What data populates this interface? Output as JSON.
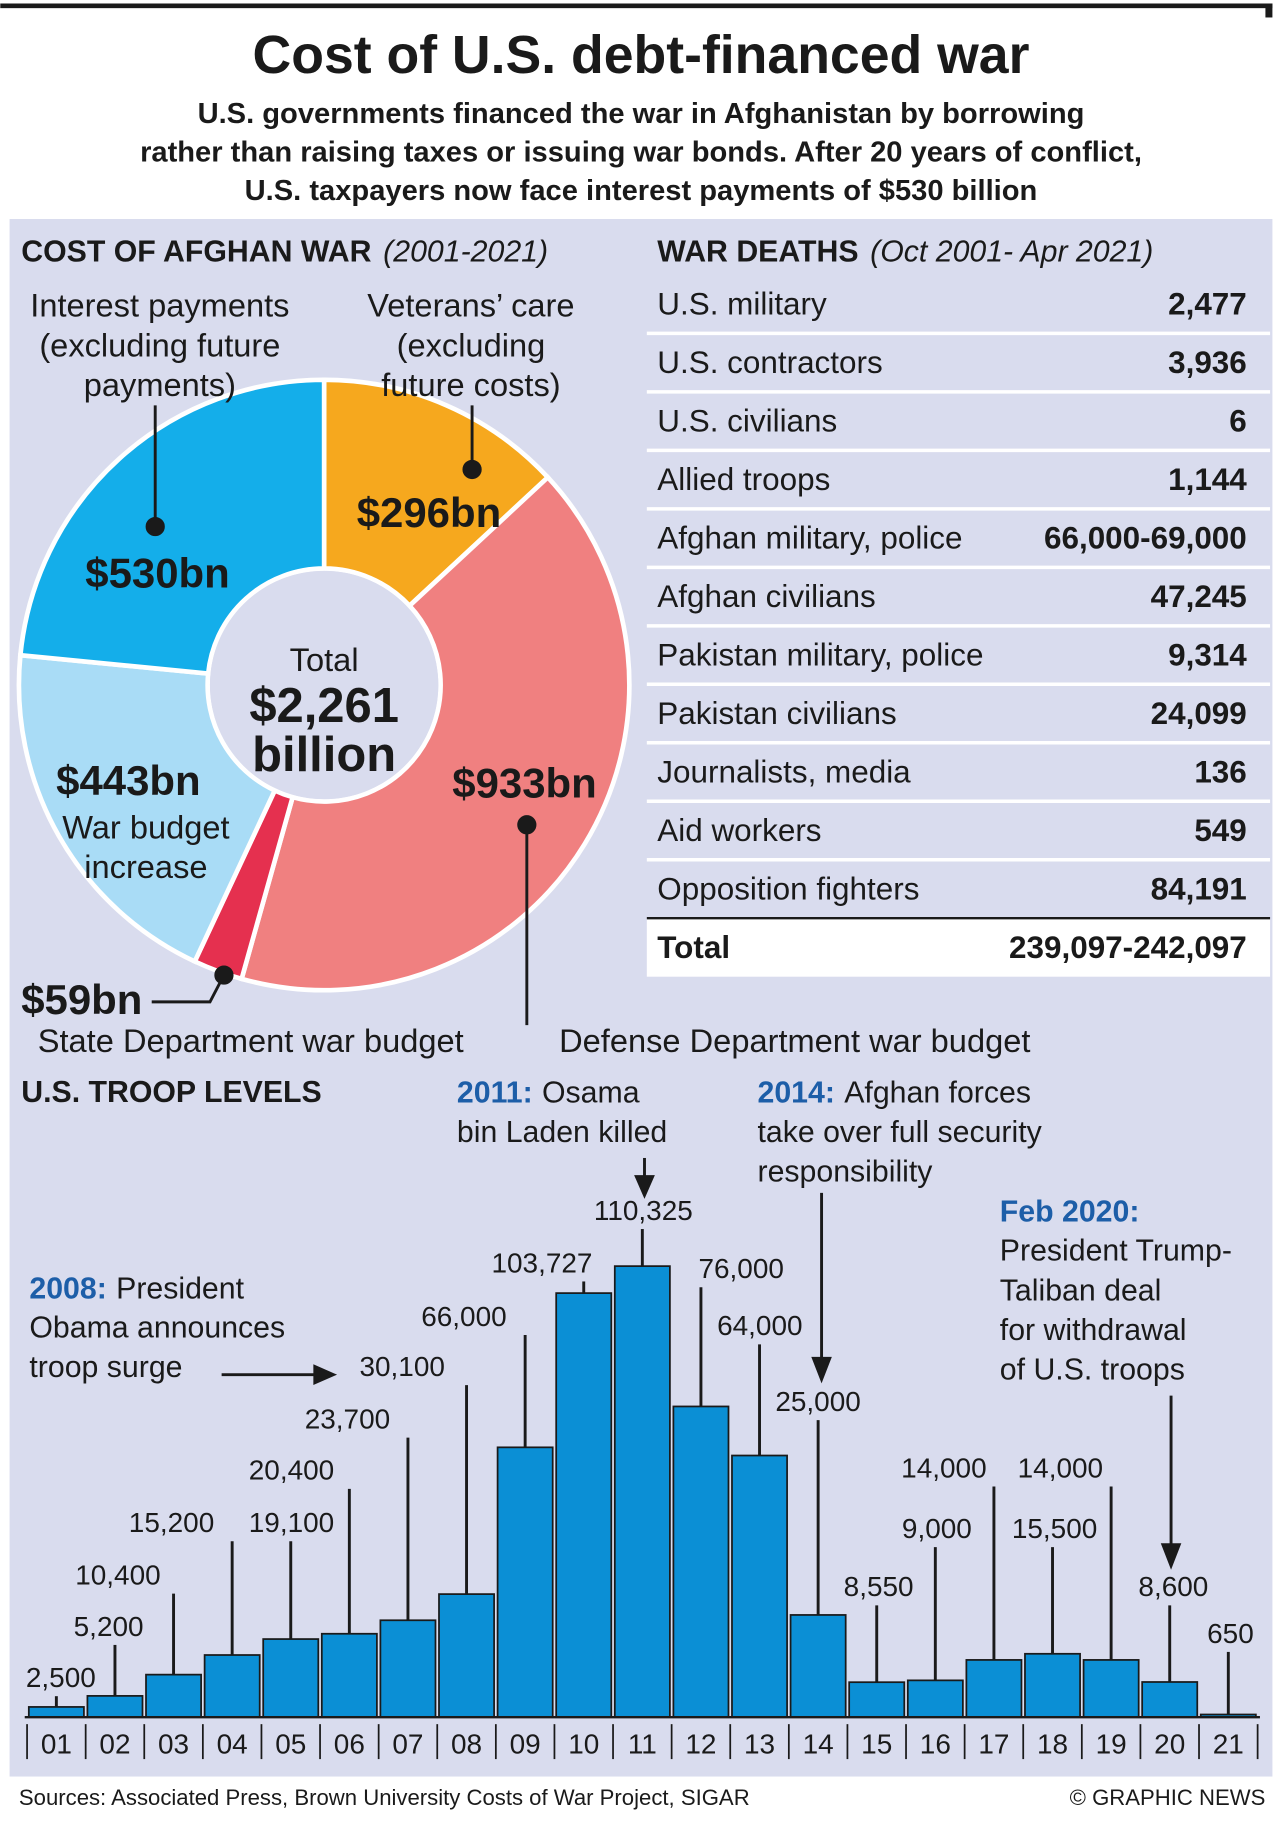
{
  "title": "Cost of U.S. debt-financed war",
  "subtitle": [
    "U.S. governments financed the war in Afghanistan by borrowing",
    "rather than raising taxes or issuing war bonds. After 20 years of conflict,",
    "U.S. taxpayers now face interest payments of $530 billion"
  ],
  "chart_data": [
    {
      "type": "pie",
      "title": "COST OF AFGHAN WAR",
      "title_note": "(2001-2021)",
      "center_lines": [
        "Total",
        "$2,261",
        "billion"
      ],
      "categories": [
        [
          "Veterans’ care",
          "(excluding",
          "future costs)"
        ],
        [
          "Defense Department war budget"
        ],
        [
          "State Department war budget"
        ],
        [
          "War budget",
          "increase"
        ],
        [
          "Interest payments",
          "(excluding future",
          "payments)"
        ]
      ],
      "values": [
        296,
        933,
        59,
        443,
        530
      ],
      "value_labels": [
        "$296bn",
        "$933bn",
        "$59bn",
        "$443bn",
        "$530bn"
      ],
      "colors": [
        "#f6a81e",
        "#f08080",
        "#e5304f",
        "#a9dcf6",
        "#14aeea"
      ]
    },
    {
      "type": "bar",
      "title": "U.S. TROOP LEVELS",
      "categories": [
        "01",
        "02",
        "03",
        "04",
        "05",
        "06",
        "07",
        "08",
        "09",
        "10",
        "11",
        "12",
        "13",
        "14",
        "15",
        "16",
        "17",
        "18",
        "19",
        "20",
        "21"
      ],
      "values": [
        2500,
        5200,
        10400,
        15200,
        19100,
        20400,
        23700,
        30100,
        66000,
        103727,
        110325,
        76000,
        64000,
        25000,
        8550,
        9000,
        14000,
        15500,
        14000,
        8600,
        650
      ],
      "value_labels": [
        "2,500",
        "5,200",
        "10,400",
        "15,200",
        "19,100",
        "20,400",
        "23,700",
        "30,100",
        "66,000",
        "103,727",
        "110,325",
        "76,000",
        "64,000",
        "25,000",
        "8,550",
        "9,000",
        "14,000",
        "15,500",
        "14,000",
        "8,600",
        "650"
      ],
      "color": "#0b8fd5",
      "annotations": [
        {
          "label": "2008:",
          "lines": [
            "President",
            "Obama announces",
            "troop surge"
          ]
        },
        {
          "label": "2011:",
          "lines": [
            "Osama",
            "bin Laden killed"
          ]
        },
        {
          "label": "2014:",
          "lines": [
            "Afghan forces",
            "take over full security",
            "responsibility"
          ]
        },
        {
          "label": "Feb 2020:",
          "lines": [
            "President Trump-",
            "Taliban deal",
            "for withdrawal",
            "of U.S. troops"
          ]
        }
      ]
    }
  ],
  "table": {
    "title": "WAR DEATHS",
    "title_note": "(Oct 2001- Apr 2021)",
    "rows": [
      [
        "U.S. military",
        "2,477"
      ],
      [
        "U.S. contractors",
        "3,936"
      ],
      [
        "U.S. civilians",
        "6"
      ],
      [
        "Allied troops",
        "1,144"
      ],
      [
        "Afghan military, police",
        "66,000-69,000"
      ],
      [
        "Afghan civilians",
        "47,245"
      ],
      [
        "Pakistan military, police",
        "9,314"
      ],
      [
        "Pakistan civilians",
        "24,099"
      ],
      [
        "Journalists, media",
        "136"
      ],
      [
        "Aid workers",
        "549"
      ],
      [
        "Opposition fighters",
        "84,191"
      ]
    ],
    "total": [
      "Total",
      "239,097-242,097"
    ]
  },
  "sources": "Sources: Associated Press, Brown University Costs of War Project, SIGAR",
  "credit": "© GRAPHIC NEWS"
}
